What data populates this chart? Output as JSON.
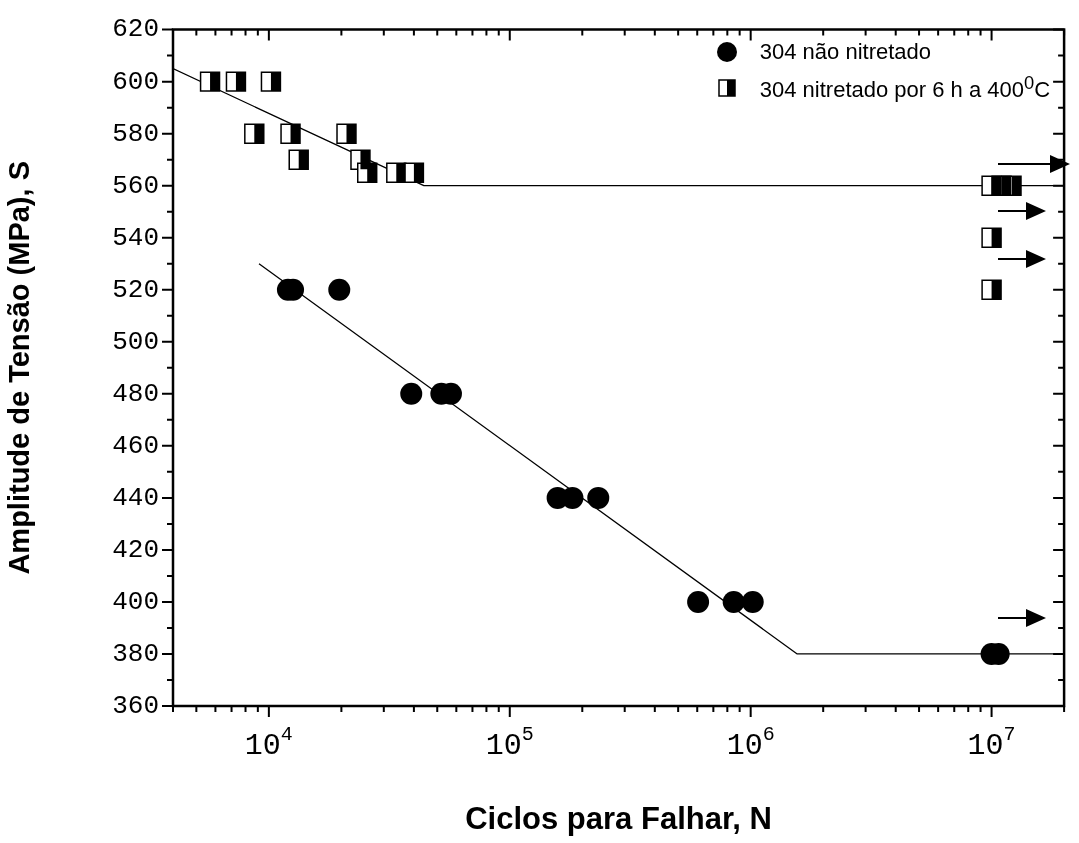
{
  "chart_data": {
    "type": "scatter",
    "xlabel": "Ciclos para Falhar, N",
    "ylabel": "Amplitude de Tensão (MPa), S",
    "log": "x",
    "xlim": [
      4000,
      20000000
    ],
    "ylim": [
      360,
      620
    ],
    "xticks": [
      {
        "value": 4000,
        "label": null
      },
      {
        "value": 5000,
        "label": null
      },
      {
        "value": 6000,
        "label": null
      },
      {
        "value": 7000,
        "label": null
      },
      {
        "value": 8000,
        "label": null
      },
      {
        "value": 9000,
        "label": null
      },
      {
        "value": 10000,
        "label": "10$^{4}$"
      },
      {
        "value": 20000,
        "label": null
      },
      {
        "value": 30000,
        "label": null
      },
      {
        "value": 40000,
        "label": null
      },
      {
        "value": 50000,
        "label": null
      },
      {
        "value": 60000,
        "label": null
      },
      {
        "value": 70000,
        "label": null
      },
      {
        "value": 80000,
        "label": null
      },
      {
        "value": 90000,
        "label": null
      },
      {
        "value": 100000,
        "label": "10$^{5}$"
      },
      {
        "value": 200000,
        "label": null
      },
      {
        "value": 300000,
        "label": null
      },
      {
        "value": 400000,
        "label": null
      },
      {
        "value": 500000,
        "label": null
      },
      {
        "value": 600000,
        "label": null
      },
      {
        "value": 700000,
        "label": null
      },
      {
        "value": 800000,
        "label": null
      },
      {
        "value": 900000,
        "label": null
      },
      {
        "value": 1000000,
        "label": "10$^{6}$"
      },
      {
        "value": 2000000,
        "label": null
      },
      {
        "value": 3000000,
        "label": null
      },
      {
        "value": 4000000,
        "label": null
      },
      {
        "value": 5000000,
        "label": null
      },
      {
        "value": 6000000,
        "label": null
      },
      {
        "value": 7000000,
        "label": null
      },
      {
        "value": 8000000,
        "label": null
      },
      {
        "value": 9000000,
        "label": null
      },
      {
        "value": 10000000,
        "label": "10$^{7}$"
      },
      {
        "value": 20000000,
        "label": null
      }
    ],
    "yticks": [
      360,
      {
        "value": 370,
        "label": null
      },
      380,
      {
        "value": 390,
        "label": null
      },
      400,
      {
        "value": 410,
        "label": null
      },
      420,
      {
        "value": 430,
        "label": null
      },
      440,
      {
        "value": 450,
        "label": null
      },
      460,
      {
        "value": 470,
        "label": null
      },
      480,
      {
        "value": 490,
        "label": null
      },
      500,
      {
        "value": 510,
        "label": null
      },
      520,
      {
        "value": 530,
        "label": null
      },
      540,
      {
        "value": 550,
        "label": null
      },
      560,
      {
        "value": 570,
        "label": null
      },
      580,
      {
        "value": 590,
        "label": null
      },
      600,
      {
        "value": 610,
        "label": null
      },
      620
    ],
    "legend": "top right",
    "series": [
      {
        "name": "304 não nitretado",
        "marker": "circle",
        "color": "#000000",
        "x": [
          12000,
          12600,
          19600,
          39000,
          52000,
          57000,
          158000,
          182000,
          233000,
          605000,
          850000,
          1020000,
          10000000,
          10700000
        ],
        "values": [
          520,
          520,
          520,
          480,
          480,
          480,
          440,
          440,
          440,
          400,
          400,
          400,
          380,
          380
        ]
      },
      {
        "name": "304 nitretado por 6 h a 400$^{0}$C",
        "marker": "square",
        "color": "#000000",
        "x": [
          5700,
          7300,
          10200,
          8700,
          12300,
          21000,
          13300,
          24000,
          25600,
          33800,
          40000,
          10000000,
          11000000,
          12100000,
          10000000,
          10000000
        ],
        "values": [
          600,
          600,
          600,
          580,
          580,
          580,
          570,
          570,
          565,
          565,
          565,
          560,
          560,
          560,
          540,
          520
        ]
      },
      {
        "type": "line",
        "marker": "none",
        "color": "#000000",
        "x": [
          4000,
          44000,
          20000000
        ],
        "values": [
          605,
          560,
          560
        ]
      },
      {
        "type": "line",
        "marker": "none",
        "color": "#000000",
        "x": [
          9100,
          1560000,
          20000000
        ],
        "values": [
          530,
          380,
          380
        ]
      }
    ]
  }
}
